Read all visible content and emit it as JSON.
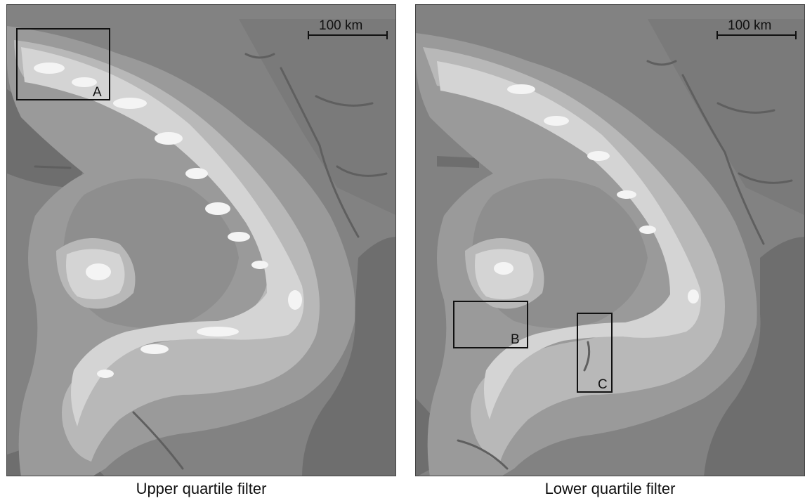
{
  "panels": [
    {
      "id": "left",
      "caption": "Upper quartile filter",
      "scale_bar_label": "100 km",
      "boxes": [
        {
          "label": "A"
        }
      ]
    },
    {
      "id": "right",
      "caption": "Lower quartile filter",
      "scale_bar_label": "100 km",
      "boxes": [
        {
          "label": "B"
        },
        {
          "label": "C"
        }
      ]
    }
  ],
  "colors": {
    "class_1_lowest": "#6e6e6e",
    "class_2": "#828282",
    "class_3": "#9a9a9a",
    "class_4": "#b8b8b8",
    "class_5": "#d4d4d4",
    "class_6_highest": "#f4f4f4",
    "drainage": "#5f5f5f"
  }
}
